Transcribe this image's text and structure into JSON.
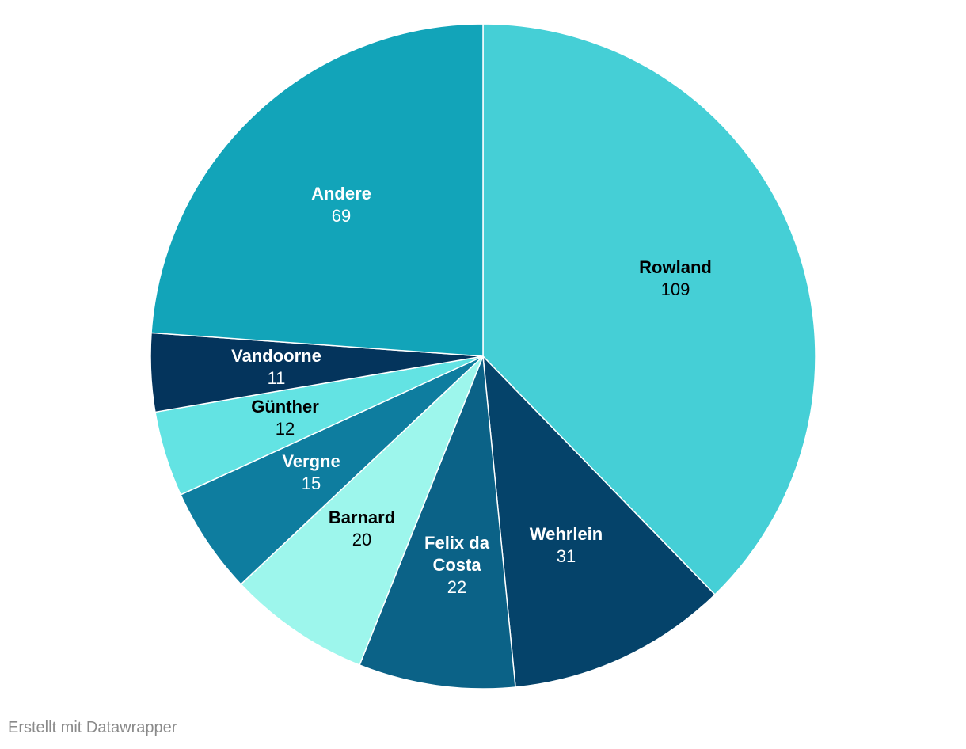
{
  "chart_data": {
    "type": "pie",
    "start_angle_deg": 0,
    "direction": "clockwise",
    "slices": [
      {
        "label": [
          "Rowland"
        ],
        "value": 109,
        "color": "#45cfd6",
        "text_color": "#000000"
      },
      {
        "label": [
          "Wehrlein"
        ],
        "value": 31,
        "color": "#05436a",
        "text_color": "#ffffff"
      },
      {
        "label": [
          "Felix da",
          "Costa"
        ],
        "value": 22,
        "color": "#0b6287",
        "text_color": "#ffffff"
      },
      {
        "label": [
          "Barnard"
        ],
        "value": 20,
        "color": "#9df6ec",
        "text_color": "#000000"
      },
      {
        "label": [
          "Vergne"
        ],
        "value": 15,
        "color": "#0e7d9f",
        "text_color": "#ffffff"
      },
      {
        "label": [
          "Günther"
        ],
        "value": 12,
        "color": "#63e3e3",
        "text_color": "#000000"
      },
      {
        "label": [
          "Vandoorne"
        ],
        "value": 11,
        "color": "#04345c",
        "text_color": "#ffffff"
      },
      {
        "label": [
          "Andere"
        ],
        "value": 69,
        "color": "#12a4b9",
        "text_color": "#ffffff"
      }
    ]
  },
  "footer": {
    "credit": "Erstellt mit Datawrapper"
  }
}
